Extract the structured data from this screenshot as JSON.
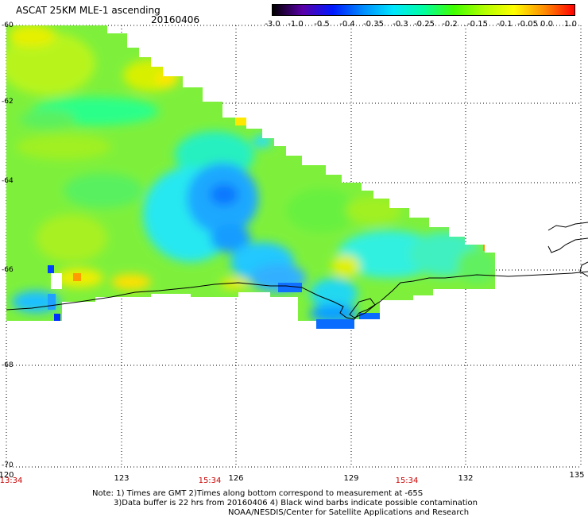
{
  "header": {
    "title": "ASCAT 25KM MLE-1 ascending",
    "date": "20160406"
  },
  "colorbar": {
    "labels": [
      "-3.0",
      "-1.0",
      "-0.5",
      "-0.4",
      "-0.35",
      "-0.3",
      "-0.25",
      "-0.2",
      "-0.15",
      "-0.1",
      "-0.05",
      "0.0",
      "1.0"
    ],
    "colors": [
      "#000000",
      "#5a00a8",
      "#0018ff",
      "#008cff",
      "#00e6ff",
      "#00ffa0",
      "#40ff00",
      "#b0ff00",
      "#ffff00",
      "#ff8c00",
      "#ff0000"
    ]
  },
  "map": {
    "y_axis_labels": [
      "-60",
      "-62",
      "-64",
      "-66",
      "-68",
      "-70"
    ],
    "x_axis_labels": [
      "120",
      "123",
      "126",
      "129",
      "132",
      "135"
    ],
    "time_labels": [
      "13:34",
      "15:34",
      "15:34"
    ]
  },
  "footer": {
    "note_line1": "Note: 1) Times are GMT 2)Times along bottom correspond to measurement at -65S",
    "note_line2": "3)Data buffer is 22 hrs from 20160406 4) Black wind barbs indicate possible contamination",
    "note_line3": "NOAA/NESDIS/Center for Satellite Applications and Research"
  }
}
